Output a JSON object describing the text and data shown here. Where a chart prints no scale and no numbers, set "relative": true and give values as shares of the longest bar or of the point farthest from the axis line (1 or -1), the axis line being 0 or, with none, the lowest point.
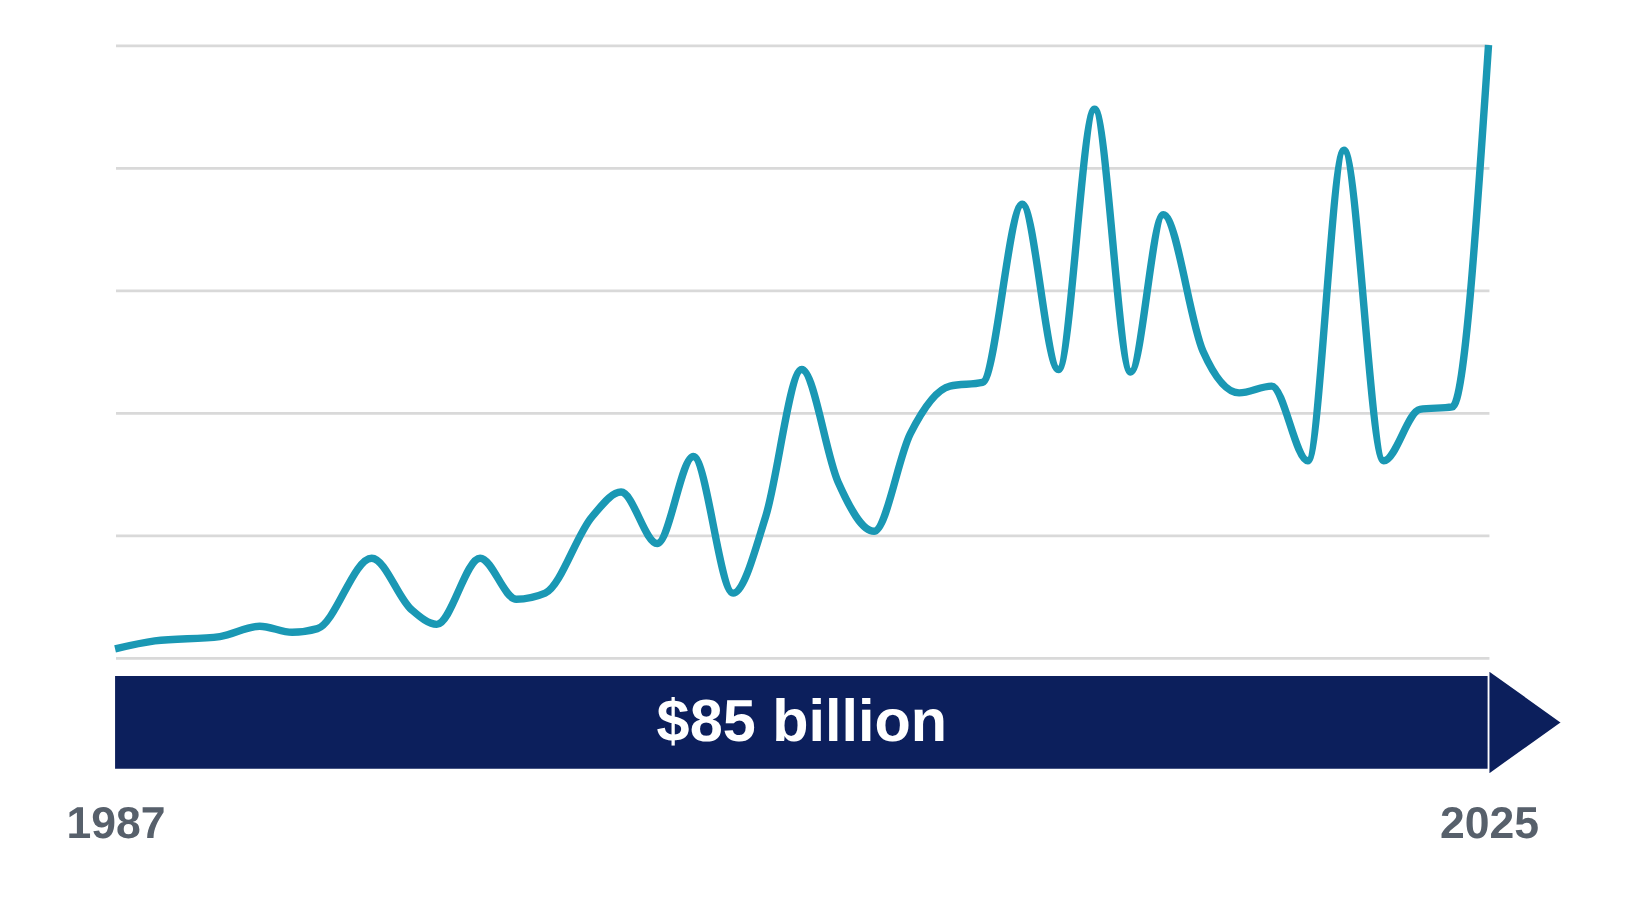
{
  "chart_data": {
    "type": "line",
    "relative": true,
    "color": "#1a98b4",
    "grid": "y",
    "line_style": "solid",
    "xlim": [
      1987,
      2025
    ],
    "xticks": [
      1987,
      2025
    ],
    "x": [
      1987.0,
      1988.1,
      1989.9,
      1991.0,
      1991.9,
      1992.6,
      1994.1,
      1995.2,
      1995.9,
      1997.1,
      1998.1,
      1998.9,
      2000.2,
      2001.0,
      2002.0,
      2003.0,
      2004.1,
      2005.0,
      2006.0,
      2007.0,
      2008.0,
      2009.0,
      2010.1,
      2011.0,
      2012.1,
      2013.1,
      2014.1,
      2015.1,
      2016.0,
      2017.1,
      2018.1,
      2019.0,
      2020.0,
      2021.0,
      2022.1,
      2023.1,
      2024.0,
      2025.0
    ],
    "values": [
      0.014,
      0.027,
      0.034,
      0.051,
      0.041,
      0.047,
      0.162,
      0.078,
      0.054,
      0.162,
      0.095,
      0.105,
      0.23,
      0.27,
      0.186,
      0.328,
      0.105,
      0.23,
      0.47,
      0.287,
      0.206,
      0.365,
      0.443,
      0.449,
      0.74,
      0.47,
      0.895,
      0.466,
      0.723,
      0.5,
      0.432,
      0.443,
      0.321,
      0.828,
      0.321,
      0.405,
      0.409,
      1
    ],
    "annotations": [
      "$85 billion"
    ]
  }
}
